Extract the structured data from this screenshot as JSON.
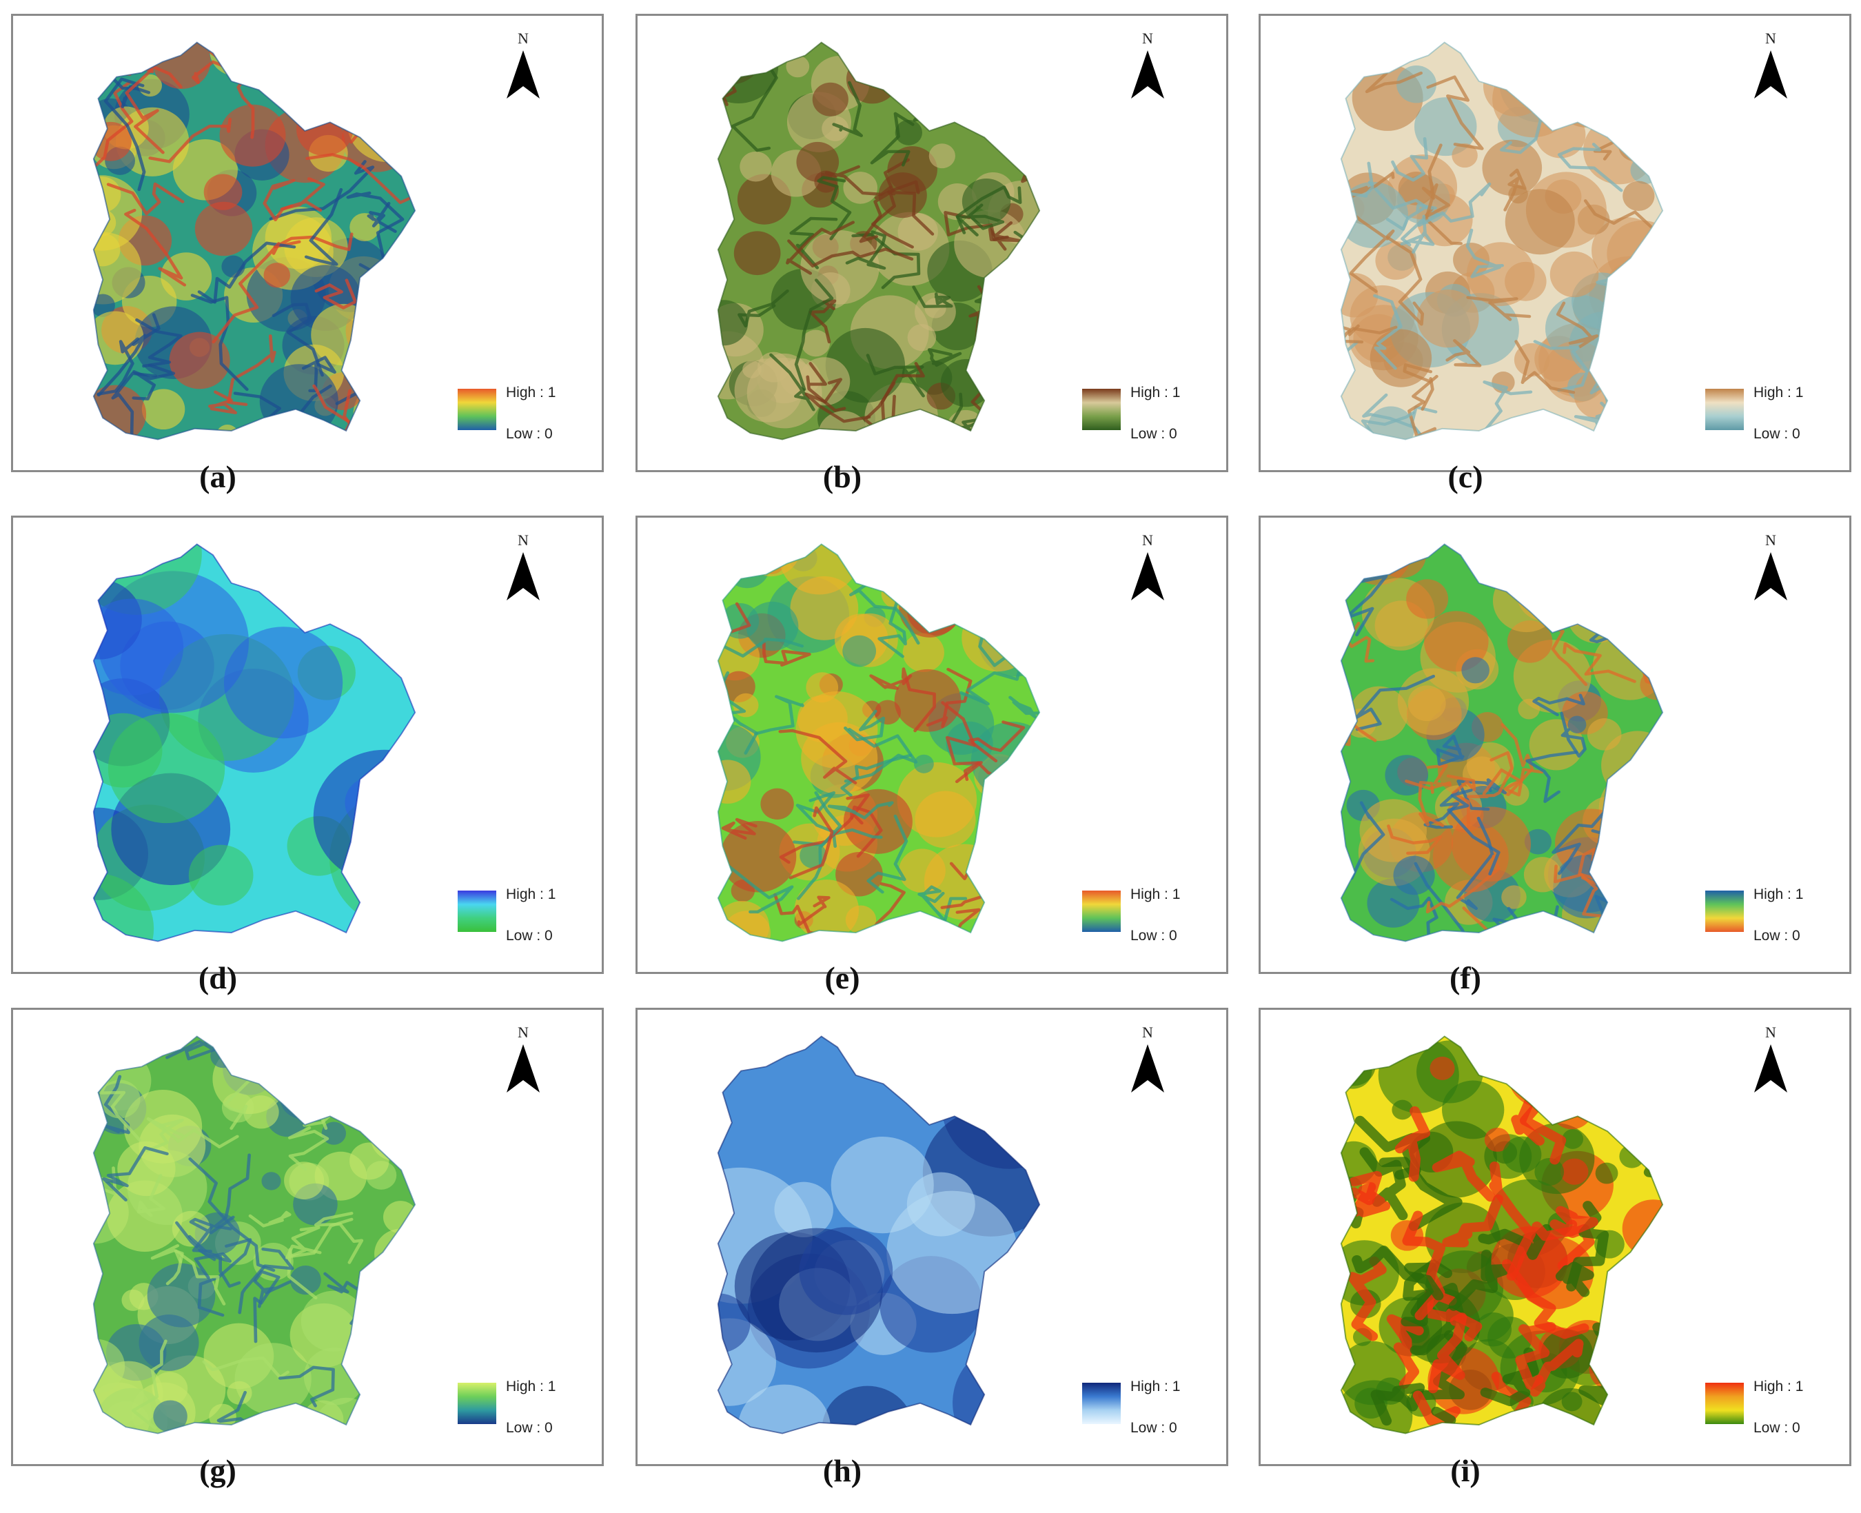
{
  "north_label": "N",
  "panels": [
    {
      "caption": "(a)",
      "legend_high": "High : 1",
      "legend_low": "Low : 0",
      "colors": {
        "base": "#2e9d83",
        "accent": "#e8d33a",
        "hot": "#d9462c",
        "dark": "#1d4f8f"
      },
      "ramp": [
        "#e85a2a",
        "#f0d73a",
        "#5fc35a",
        "#2060a8"
      ]
    },
    {
      "caption": "(b)",
      "legend_high": "High : 1",
      "legend_low": "Low : 0",
      "colors": {
        "base": "#6f9a3e",
        "accent": "#c9b77a",
        "hot": "#7a3b1c",
        "dark": "#2f5e1e"
      },
      "ramp": [
        "#7a3b1c",
        "#d8c99a",
        "#7aa04a",
        "#2f5e1e"
      ]
    },
    {
      "caption": "(c)",
      "legend_high": "High : 1",
      "legend_low": "Low : 0",
      "colors": {
        "base": "#e8dcc0",
        "accent": "#d49a60",
        "hot": "#c0834a",
        "dark": "#7fb3b8"
      },
      "ramp": [
        "#c0834a",
        "#efe0c2",
        "#a9cfd0",
        "#5f9aa6"
      ]
    },
    {
      "caption": "(d)",
      "legend_high": "High : 1",
      "legend_low": "Low : 0",
      "colors": {
        "base": "#40d8dc",
        "accent": "#3ac65a",
        "hot": "#2a60e0",
        "dark": "#1530b8"
      },
      "ramp": [
        "#3a3ae0",
        "#4ad6f0",
        "#40d080",
        "#3ac03a"
      ]
    },
    {
      "caption": "(e)",
      "legend_high": "High : 1",
      "legend_low": "Low : 0",
      "colors": {
        "base": "#6fd33c",
        "accent": "#f0b02a",
        "hot": "#c9402a",
        "dark": "#2f9f86"
      },
      "ramp": [
        "#e85a2a",
        "#f0d73a",
        "#5fc35a",
        "#2060a8"
      ]
    },
    {
      "caption": "(f)",
      "legend_high": "High : 1",
      "legend_low": "Low : 0",
      "colors": {
        "base": "#4cbd4a",
        "accent": "#e0a83a",
        "hot": "#e06a2a",
        "dark": "#2a6fa8"
      },
      "ramp": [
        "#2060a8",
        "#5fc35a",
        "#f0d73a",
        "#e85a2a"
      ]
    },
    {
      "caption": "(g)",
      "legend_high": "High : 1",
      "legend_low": "Low : 0",
      "colors": {
        "base": "#5cb84a",
        "accent": "#c5e66a",
        "hot": "#a8dd6a",
        "dark": "#2f6f9a"
      },
      "ramp": [
        "#d8f06a",
        "#6ecf5a",
        "#2e9aa0",
        "#1a3a8a"
      ]
    },
    {
      "caption": "(h)",
      "legend_high": "High : 1",
      "legend_low": "Low : 0",
      "colors": {
        "base": "#4a8fd8",
        "accent": "#b8dcf4",
        "hot": "#1d3f9a",
        "dark": "#0f2a7a"
      },
      "ramp": [
        "#10287a",
        "#3a7ad0",
        "#a8d2f2",
        "#eaf6ff"
      ]
    },
    {
      "caption": "(i)",
      "legend_high": "High : 1",
      "legend_low": "Low : 0",
      "colors": {
        "base": "#f0e020",
        "accent": "#2f7a10",
        "hot": "#f03010",
        "dark": "#2a6a0a"
      },
      "ramp": [
        "#f03010",
        "#f0a020",
        "#f0e020",
        "#3a8a10"
      ]
    }
  ]
}
